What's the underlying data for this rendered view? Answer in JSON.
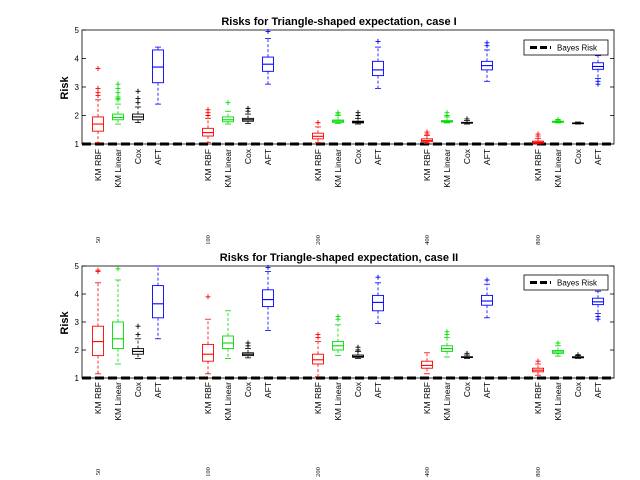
{
  "chart_data": [
    {
      "type": "boxplot",
      "title": "Risks for Triangle-shaped expectation, case I",
      "ylabel": "Risk",
      "xlabel": "",
      "ylim": [
        1,
        5
      ],
      "yticks": [
        1,
        2,
        3,
        4,
        5
      ],
      "legend": {
        "label": "Bayes Risk",
        "position": "top-right"
      },
      "bayes_risk": 1,
      "sample_sizes": [
        "50",
        "100",
        "200",
        "400",
        "800"
      ],
      "methods": [
        "KM RBF",
        "KM Linear",
        "Cox",
        "AFT"
      ],
      "method_colors": [
        "#ff0000",
        "#00dd00",
        "#000000",
        "#0000ff"
      ],
      "groups": [
        {
          "n": "50",
          "boxes": [
            {
              "method": "KM RBF",
              "wlo": 1.05,
              "q1": 1.45,
              "med": 1.7,
              "q3": 1.95,
              "whi": 2.55,
              "outliers": [
                2.7,
                2.8,
                2.95,
                3.65
              ]
            },
            {
              "method": "KM Linear",
              "wlo": 1.7,
              "q1": 1.85,
              "med": 1.93,
              "q3": 2.05,
              "whi": 2.4,
              "outliers": [
                2.55,
                2.6,
                2.65,
                2.8,
                2.95,
                3.1
              ]
            },
            {
              "method": "Cox",
              "wlo": 1.75,
              "q1": 1.85,
              "med": 1.95,
              "q3": 2.05,
              "whi": 2.3,
              "outliers": [
                2.45,
                2.6,
                2.85
              ]
            },
            {
              "method": "AFT",
              "wlo": 2.4,
              "q1": 3.15,
              "med": 3.7,
              "q3": 4.3,
              "whi": 4.4,
              "outliers": []
            }
          ]
        },
        {
          "n": "100",
          "boxes": [
            {
              "method": "KM RBF",
              "wlo": 1.05,
              "q1": 1.28,
              "med": 1.4,
              "q3": 1.55,
              "whi": 1.9,
              "outliers": [
                2.0,
                2.1,
                2.2
              ]
            },
            {
              "method": "KM Linear",
              "wlo": 1.7,
              "q1": 1.78,
              "med": 1.85,
              "q3": 1.95,
              "whi": 2.15,
              "outliers": [
                2.45
              ]
            },
            {
              "method": "Cox",
              "wlo": 1.72,
              "q1": 1.8,
              "med": 1.85,
              "q3": 1.9,
              "whi": 2.05,
              "outliers": [
                2.15,
                2.25
              ]
            },
            {
              "method": "AFT",
              "wlo": 3.1,
              "q1": 3.55,
              "med": 3.8,
              "q3": 4.05,
              "whi": 4.7,
              "outliers": [
                4.95
              ]
            }
          ]
        },
        {
          "n": "200",
          "boxes": [
            {
              "method": "KM RBF",
              "wlo": 1.05,
              "q1": 1.18,
              "med": 1.27,
              "q3": 1.38,
              "whi": 1.6,
              "outliers": [
                1.75
              ]
            },
            {
              "method": "KM Linear",
              "wlo": 1.72,
              "q1": 1.76,
              "med": 1.8,
              "q3": 1.84,
              "whi": 2.0,
              "outliers": [
                2.05,
                2.1
              ]
            },
            {
              "method": "Cox",
              "wlo": 1.7,
              "q1": 1.74,
              "med": 1.77,
              "q3": 1.8,
              "whi": 1.9,
              "outliers": [
                2.0,
                2.1
              ]
            },
            {
              "method": "AFT",
              "wlo": 2.95,
              "q1": 3.4,
              "med": 3.6,
              "q3": 3.9,
              "whi": 4.4,
              "outliers": [
                4.6
              ]
            }
          ]
        },
        {
          "n": "400",
          "boxes": [
            {
              "method": "KM RBF",
              "wlo": 1.02,
              "q1": 1.08,
              "med": 1.12,
              "q3": 1.18,
              "whi": 1.3,
              "outliers": [
                1.35,
                1.42
              ]
            },
            {
              "method": "KM Linear",
              "wlo": 1.74,
              "q1": 1.77,
              "med": 1.79,
              "q3": 1.82,
              "whi": 1.95,
              "outliers": [
                2.0,
                2.1
              ]
            },
            {
              "method": "Cox",
              "wlo": 1.7,
              "q1": 1.73,
              "med": 1.74,
              "q3": 1.76,
              "whi": 1.82,
              "outliers": [
                1.88
              ]
            },
            {
              "method": "AFT",
              "wlo": 3.2,
              "q1": 3.6,
              "med": 3.75,
              "q3": 3.9,
              "whi": 4.3,
              "outliers": [
                4.45,
                4.55
              ]
            }
          ]
        },
        {
          "n": "800",
          "boxes": [
            {
              "method": "KM RBF",
              "wlo": 1.0,
              "q1": 1.03,
              "med": 1.06,
              "q3": 1.1,
              "whi": 1.2,
              "outliers": [
                1.28,
                1.35
              ]
            },
            {
              "method": "KM Linear",
              "wlo": 1.74,
              "q1": 1.76,
              "med": 1.78,
              "q3": 1.8,
              "whi": 1.84,
              "outliers": [
                1.86
              ]
            },
            {
              "method": "Cox",
              "wlo": 1.7,
              "q1": 1.72,
              "med": 1.73,
              "q3": 1.74,
              "whi": 1.77,
              "outliers": []
            },
            {
              "method": "AFT",
              "wlo": 3.3,
              "q1": 3.62,
              "med": 3.72,
              "q3": 3.85,
              "whi": 4.1,
              "outliers": [
                3.1,
                3.2
              ]
            }
          ]
        }
      ]
    },
    {
      "type": "boxplot",
      "title": "Risks for Triangle-shaped expectation, case II",
      "ylabel": "Risk",
      "xlabel": "",
      "ylim": [
        1,
        5
      ],
      "yticks": [
        1,
        2,
        3,
        4,
        5
      ],
      "legend": {
        "label": "Bayes Risk",
        "position": "top-right"
      },
      "bayes_risk": 1,
      "sample_sizes": [
        "50",
        "100",
        "200",
        "400",
        "800"
      ],
      "methods": [
        "KM RBF",
        "KM Linear",
        "Cox",
        "AFT"
      ],
      "method_colors": [
        "#ff0000",
        "#00dd00",
        "#000000",
        "#0000ff"
      ],
      "groups": [
        {
          "n": "50",
          "boxes": [
            {
              "method": "KM RBF",
              "wlo": 1.15,
              "q1": 1.8,
              "med": 2.3,
              "q3": 2.85,
              "whi": 4.4,
              "outliers": [
                4.8,
                4.85
              ]
            },
            {
              "method": "KM Linear",
              "wlo": 1.5,
              "q1": 2.05,
              "med": 2.4,
              "q3": 3.0,
              "whi": 4.5,
              "outliers": [
                4.9
              ]
            },
            {
              "method": "Cox",
              "wlo": 1.7,
              "q1": 1.85,
              "med": 1.95,
              "q3": 2.05,
              "whi": 2.4,
              "outliers": [
                2.55,
                2.85
              ]
            },
            {
              "method": "AFT",
              "wlo": 2.4,
              "q1": 3.15,
              "med": 3.65,
              "q3": 4.3,
              "whi": 5.0,
              "outliers": []
            }
          ]
        },
        {
          "n": "100",
          "boxes": [
            {
              "method": "KM RBF",
              "wlo": 1.15,
              "q1": 1.6,
              "med": 1.85,
              "q3": 2.2,
              "whi": 3.1,
              "outliers": [
                3.9
              ]
            },
            {
              "method": "KM Linear",
              "wlo": 1.7,
              "q1": 2.05,
              "med": 2.25,
              "q3": 2.5,
              "whi": 3.4,
              "outliers": []
            },
            {
              "method": "Cox",
              "wlo": 1.72,
              "q1": 1.8,
              "med": 1.85,
              "q3": 1.9,
              "whi": 2.05,
              "outliers": [
                2.15,
                2.25
              ]
            },
            {
              "method": "AFT",
              "wlo": 2.7,
              "q1": 3.55,
              "med": 3.8,
              "q3": 4.15,
              "whi": 4.8,
              "outliers": [
                4.95
              ]
            }
          ]
        },
        {
          "n": "200",
          "boxes": [
            {
              "method": "KM RBF",
              "wlo": 1.05,
              "q1": 1.5,
              "med": 1.65,
              "q3": 1.85,
              "whi": 2.3,
              "outliers": [
                2.45,
                2.55
              ]
            },
            {
              "method": "KM Linear",
              "wlo": 1.8,
              "q1": 2.0,
              "med": 2.15,
              "q3": 2.3,
              "whi": 2.9,
              "outliers": [
                3.1,
                3.2
              ]
            },
            {
              "method": "Cox",
              "wlo": 1.7,
              "q1": 1.74,
              "med": 1.77,
              "q3": 1.82,
              "whi": 1.95,
              "outliers": [
                2.0,
                2.1
              ]
            },
            {
              "method": "AFT",
              "wlo": 2.95,
              "q1": 3.4,
              "med": 3.7,
              "q3": 3.95,
              "whi": 4.4,
              "outliers": [
                4.6
              ]
            }
          ]
        },
        {
          "n": "400",
          "boxes": [
            {
              "method": "KM RBF",
              "wlo": 1.15,
              "q1": 1.35,
              "med": 1.45,
              "q3": 1.6,
              "whi": 1.9,
              "outliers": []
            },
            {
              "method": "KM Linear",
              "wlo": 1.75,
              "q1": 1.95,
              "med": 2.05,
              "q3": 2.15,
              "whi": 2.45,
              "outliers": [
                2.55,
                2.65
              ]
            },
            {
              "method": "Cox",
              "wlo": 1.7,
              "q1": 1.73,
              "med": 1.74,
              "q3": 1.76,
              "whi": 1.82,
              "outliers": [
                1.88
              ]
            },
            {
              "method": "AFT",
              "wlo": 3.15,
              "q1": 3.6,
              "med": 3.75,
              "q3": 3.95,
              "whi": 4.35,
              "outliers": [
                4.5
              ]
            }
          ]
        },
        {
          "n": "800",
          "boxes": [
            {
              "method": "KM RBF",
              "wlo": 1.1,
              "q1": 1.22,
              "med": 1.28,
              "q3": 1.35,
              "whi": 1.5,
              "outliers": [
                1.6
              ]
            },
            {
              "method": "KM Linear",
              "wlo": 1.78,
              "q1": 1.88,
              "med": 1.93,
              "q3": 1.98,
              "whi": 2.15,
              "outliers": [
                2.25
              ]
            },
            {
              "method": "Cox",
              "wlo": 1.7,
              "q1": 1.72,
              "med": 1.74,
              "q3": 1.76,
              "whi": 1.8,
              "outliers": [
                1.83
              ]
            },
            {
              "method": "AFT",
              "wlo": 3.3,
              "q1": 3.62,
              "med": 3.72,
              "q3": 3.85,
              "whi": 4.1,
              "outliers": [
                3.1,
                3.2
              ]
            }
          ]
        }
      ]
    }
  ]
}
